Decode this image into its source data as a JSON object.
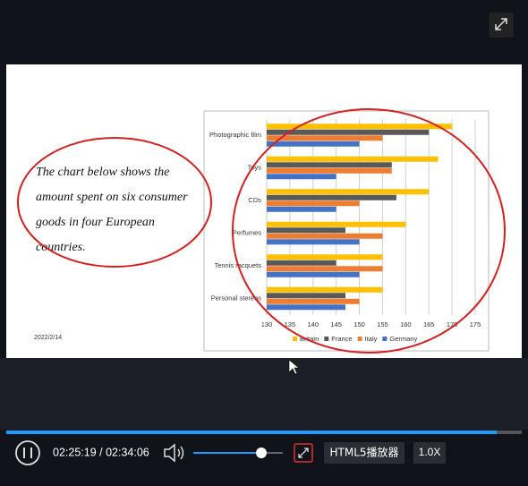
{
  "slide": {
    "text_lines": [
      "The chart below shows the",
      "amount spent on six consumer",
      "goods in four European",
      "countries."
    ],
    "date": "2022/2/14"
  },
  "chart_data": {
    "type": "hbar",
    "categories": [
      "Photographic film",
      "Toys",
      "CDs",
      "Perfumes",
      "Tennis racquets",
      "Personal stereos"
    ],
    "series": [
      {
        "name": "Britain",
        "color": "#ffc000",
        "values": [
          170,
          167,
          165,
          160,
          155,
          155
        ]
      },
      {
        "name": "France",
        "color": "#595959",
        "values": [
          165,
          157,
          158,
          147,
          145,
          147
        ]
      },
      {
        "name": "Italy",
        "color": "#ed7d31",
        "values": [
          155,
          157,
          150,
          155,
          155,
          150
        ]
      },
      {
        "name": "Germany",
        "color": "#4472c4",
        "values": [
          150,
          145,
          145,
          150,
          150,
          147
        ]
      }
    ],
    "xlim": [
      130,
      175
    ],
    "xticks": [
      130,
      135,
      140,
      145,
      150,
      155,
      160,
      165,
      170,
      175
    ],
    "grid": true
  },
  "player": {
    "time": "02:25:19 / 02:34:06",
    "player_name": "HTML5播放器",
    "speed": "1.0X"
  }
}
